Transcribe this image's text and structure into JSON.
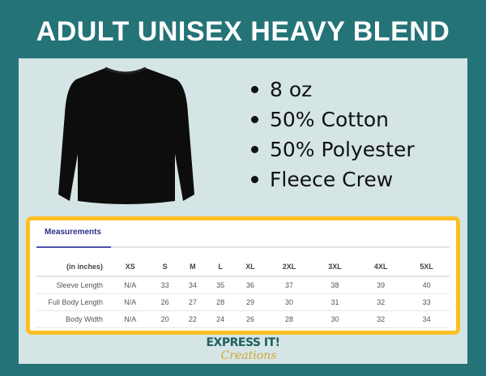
{
  "title": "ADULT UNISEX HEAVY BLEND",
  "features": [
    "8 oz",
    "50% Cotton",
    "50% Polyester",
    "Fleece Crew"
  ],
  "table": {
    "tab": "Measurements",
    "headers": [
      "(in inches)",
      "XS",
      "S",
      "M",
      "L",
      "XL",
      "2XL",
      "3XL",
      "4XL",
      "5XL"
    ],
    "rows": [
      [
        "Sleeve Length",
        "N/A",
        "33",
        "34",
        "35",
        "36",
        "37",
        "38",
        "39",
        "40"
      ],
      [
        "Full Body Length",
        "N/A",
        "26",
        "27",
        "28",
        "29",
        "30",
        "31",
        "32",
        "33"
      ],
      [
        "Body Width",
        "N/A",
        "20",
        "22",
        "24",
        "26",
        "28",
        "30",
        "32",
        "34"
      ]
    ]
  },
  "logo": {
    "line1": "EXPRESS IT!",
    "line2": "Creations"
  },
  "colors": {
    "background": "#247377",
    "panel": "#d5e5e5",
    "table_border": "#fbbf24",
    "tab_accent": "#2e2e8a"
  }
}
